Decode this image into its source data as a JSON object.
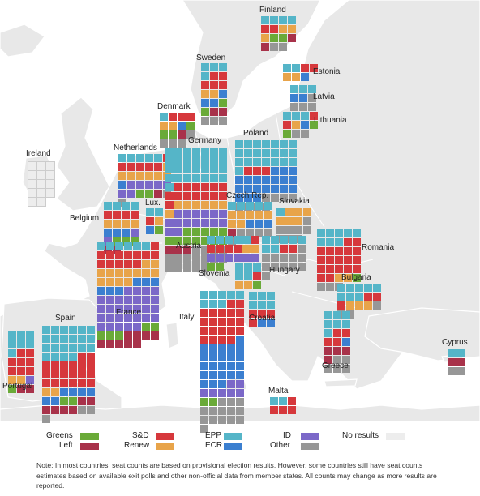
{
  "colors": {
    "greens": "#6aaa38",
    "left": "#a8324a",
    "sd": "#d6383c",
    "renew": "#e8a44a",
    "epp": "#55b5c8",
    "ecr": "#3b7fd0",
    "id": "#7b68c8",
    "other": "#979797",
    "no_results": "#ededed",
    "land": "#e8e8e8",
    "sea": "#ffffff"
  },
  "legend": [
    {
      "key": "greens",
      "label": "Greens"
    },
    {
      "key": "left",
      "label": "Left"
    },
    {
      "key": "sd",
      "label": "S&D"
    },
    {
      "key": "renew",
      "label": "Renew"
    },
    {
      "key": "epp",
      "label": "EPP"
    },
    {
      "key": "ecr",
      "label": "ECR"
    },
    {
      "key": "id",
      "label": "ID"
    },
    {
      "key": "other",
      "label": "Other"
    },
    {
      "key": "no_results",
      "label": "No results"
    }
  ],
  "note": "Note: In most countries, seat counts are based on provisional election results. However, some countries still have seat counts estimates based on available exit polls and other non-official data from member states. All counts may change as more results are reported.",
  "countries": [
    {
      "name": "Finland",
      "cols": 4,
      "seats": {
        "greens": 2,
        "left": 2,
        "sd": 2,
        "renew": 3,
        "epp": 4,
        "ecr": 0,
        "id": 0,
        "other": 2
      }
    },
    {
      "name": "Sweden",
      "cols": 3,
      "seats": {
        "greens": 2,
        "left": 2,
        "sd": 5,
        "renew": 2,
        "epp": 4,
        "ecr": 3,
        "id": 0,
        "other": 3
      }
    },
    {
      "name": "Estonia",
      "cols": 4,
      "seats": {
        "greens": 0,
        "left": 0,
        "sd": 2,
        "renew": 2,
        "epp": 2,
        "ecr": 1,
        "id": 0,
        "other": 0
      }
    },
    {
      "name": "Latvia",
      "cols": 3,
      "seats": {
        "greens": 0,
        "left": 0,
        "sd": 0,
        "renew": 0,
        "epp": 3,
        "ecr": 2,
        "id": 0,
        "other": 4
      }
    },
    {
      "name": "Lithuania",
      "cols": 4,
      "seats": {
        "greens": 2,
        "left": 0,
        "sd": 2,
        "renew": 1,
        "epp": 3,
        "ecr": 1,
        "id": 0,
        "other": 2
      }
    },
    {
      "name": "Denmark",
      "cols": 4,
      "seats": {
        "greens": 3,
        "left": 1,
        "sd": 3,
        "renew": 2,
        "epp": 1,
        "ecr": 1,
        "id": 0,
        "other": 4
      }
    },
    {
      "name": "Ireland",
      "cols": 3,
      "no_results": true,
      "placeholder_cells": 14
    },
    {
      "name": "Netherlands",
      "cols": 6,
      "seats": {
        "greens": 2,
        "left": 1,
        "sd": 6,
        "renew": 7,
        "epp": 5,
        "ecr": 1,
        "id": 7,
        "other": 2
      }
    },
    {
      "name": "Germany",
      "cols": 7,
      "seats": {
        "greens": 12,
        "left": 3,
        "sd": 14,
        "renew": 7,
        "epp": 29,
        "ecr": 0,
        "id": 15,
        "other": 16
      }
    },
    {
      "name": "Poland",
      "cols": 7,
      "seats": {
        "greens": 0,
        "left": 0,
        "sd": 3,
        "renew": 0,
        "epp": 22,
        "ecr": 20,
        "id": 0,
        "other": 8
      }
    },
    {
      "name": "Belgium",
      "cols": 4,
      "seats": {
        "greens": 3,
        "left": 2,
        "sd": 4,
        "renew": 4,
        "epp": 4,
        "ecr": 3,
        "id": 2,
        "other": 0
      }
    },
    {
      "name": "Lux.",
      "cols": 2,
      "seats": {
        "greens": 1,
        "left": 0,
        "sd": 1,
        "renew": 1,
        "epp": 2,
        "ecr": 1,
        "id": 0,
        "other": 0
      }
    },
    {
      "name": "Czech Rep.",
      "cols": 5,
      "seats": {
        "greens": 0,
        "left": 1,
        "sd": 0,
        "renew": 7,
        "epp": 5,
        "ecr": 3,
        "id": 0,
        "other": 5
      }
    },
    {
      "name": "Slovakia",
      "cols": 4,
      "seats": {
        "greens": 0,
        "left": 0,
        "sd": 0,
        "renew": 6,
        "epp": 1,
        "ecr": 0,
        "id": 0,
        "other": 8
      }
    },
    {
      "name": "France",
      "cols": 7,
      "seats": {
        "greens": 5,
        "left": 9,
        "sd": 13,
        "renew": 13,
        "epp": 6,
        "ecr": 6,
        "id": 30,
        "other": 0
      }
    },
    {
      "name": "Austria",
      "cols": 6,
      "seats": {
        "greens": 2,
        "left": 0,
        "sd": 5,
        "renew": 2,
        "epp": 5,
        "ecr": 0,
        "id": 6,
        "other": 0
      }
    },
    {
      "name": "Hungary",
      "cols": 5,
      "seats": {
        "greens": 0,
        "left": 0,
        "sd": 2,
        "renew": 0,
        "epp": 7,
        "ecr": 0,
        "id": 0,
        "other": 12
      }
    },
    {
      "name": "Romania",
      "cols": 5,
      "seats": {
        "greens": 1,
        "left": 0,
        "sd": 19,
        "renew": 2,
        "epp": 8,
        "ecr": 0,
        "id": 0,
        "other": 3
      }
    },
    {
      "name": "Slovenia",
      "cols": 3,
      "seats": {
        "greens": 1,
        "left": 0,
        "sd": 1,
        "renew": 2,
        "epp": 5,
        "ecr": 0,
        "id": 0,
        "other": 0
      }
    },
    {
      "name": "Bulgaria",
      "cols": 5,
      "seats": {
        "greens": 0,
        "left": 0,
        "sd": 3,
        "renew": 3,
        "epp": 8,
        "ecr": 0,
        "id": 0,
        "other": 3
      }
    },
    {
      "name": "Croatia",
      "cols": 3,
      "seats": {
        "greens": 0,
        "left": 0,
        "sd": 4,
        "renew": 0,
        "epp": 6,
        "ecr": 2,
        "id": 0,
        "other": 0
      }
    },
    {
      "name": "Italy",
      "cols": 5,
      "seats": {
        "greens": 2,
        "left": 0,
        "sd": 21,
        "renew": 0,
        "epp": 8,
        "ecr": 24,
        "id": 7,
        "other": 14
      }
    },
    {
      "name": "Spain",
      "cols": 6,
      "seats": {
        "greens": 2,
        "left": 6,
        "sd": 20,
        "renew": 2,
        "epp": 22,
        "ecr": 6,
        "id": 0,
        "other": 3
      }
    },
    {
      "name": "Portugal",
      "cols": 3,
      "seats": {
        "greens": 1,
        "left": 2,
        "sd": 8,
        "renew": 2,
        "epp": 7,
        "ecr": 0,
        "id": 1,
        "other": 0
      }
    },
    {
      "name": "Greece",
      "cols": 3,
      "seats": {
        "greens": 0,
        "left": 4,
        "sd": 4,
        "renew": 0,
        "epp": 7,
        "ecr": 1,
        "id": 0,
        "other": 5
      }
    },
    {
      "name": "Cyprus",
      "cols": 2,
      "seats": {
        "greens": 0,
        "left": 2,
        "sd": 0,
        "renew": 0,
        "epp": 2,
        "ecr": 0,
        "id": 0,
        "other": 2
      }
    },
    {
      "name": "Malta",
      "cols": 3,
      "seats": {
        "greens": 0,
        "left": 0,
        "sd": 4,
        "renew": 0,
        "epp": 2,
        "ecr": 0,
        "id": 0,
        "other": 0
      }
    }
  ]
}
